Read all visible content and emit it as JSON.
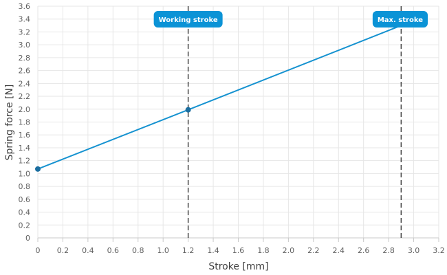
{
  "chart_data": {
    "type": "line",
    "title": "",
    "xlabel": "Stroke [mm]",
    "ylabel": "Spring force [N]",
    "xlim": [
      0,
      3.2
    ],
    "ylim": [
      0,
      3.6
    ],
    "grid": true,
    "x_ticks": [
      "0",
      "0.2",
      "0.4",
      "0.6",
      "0.8",
      "1.0",
      "1.2",
      "1.4",
      "1.6",
      "1.8",
      "2.0",
      "2.2",
      "2.4",
      "2.6",
      "2.8",
      "3.0",
      "3.2"
    ],
    "y_ticks": [
      "0",
      "0.2",
      "0.4",
      "0.6",
      "0.8",
      "1.0",
      "1.2",
      "1.4",
      "1.6",
      "1.8",
      "2.0",
      "2.2",
      "2.4",
      "2.6",
      "2.8",
      "3.0",
      "3.2",
      "3.4",
      "3.6"
    ],
    "series": [
      {
        "x": [
          0,
          1.2,
          2.9
        ],
        "y": [
          1.07,
          1.99,
          3.3
        ],
        "markers": [
          0,
          1.2
        ],
        "color": "#1592d0"
      }
    ],
    "annotations": [
      {
        "x": 1.2,
        "label": "Working stroke",
        "style": "dashed"
      },
      {
        "x": 2.9,
        "label": "Max. stroke",
        "style": "dashed"
      }
    ],
    "colors": {
      "line": "#1592d0",
      "marker": "#1b6ea0",
      "annotation_bg": "#0b93d6",
      "annotation_text": "#ffffff",
      "dashed_line": "#444444",
      "grid": "#e6e6e6"
    }
  }
}
